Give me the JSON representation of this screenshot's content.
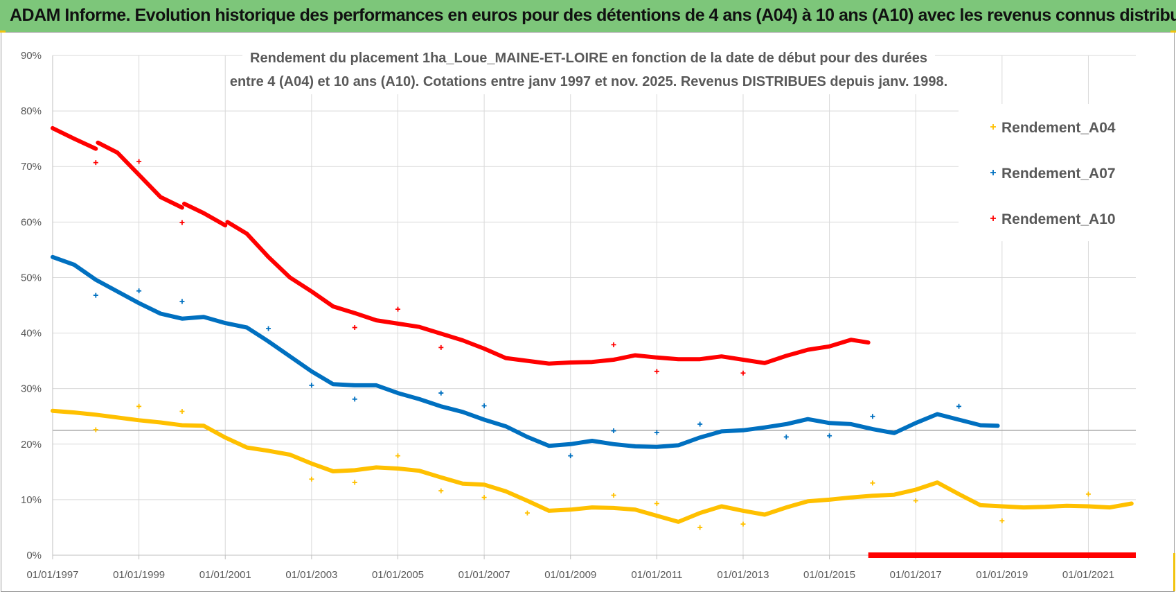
{
  "banner": {
    "title": "ADAM Informe. Evolution historique des performances en euros pour des détentions de 4 ans (A04) à 10 ans (A10) avec les revenus connus distribués"
  },
  "chart_data": {
    "type": "scatter",
    "title_lines": [
      "Rendement du placement 1ha_Loue_MAINE-ET-LOIRE en fonction de la date de début pour des durées",
      "entre 4 (A04) et 10 ans (A10). Cotations entre janv 1997 et nov. 2025. Revenus DISTRIBUES depuis janv. 1998."
    ],
    "xlabel": "",
    "ylabel": "",
    "x_tick_labels": [
      "01/01/1997",
      "01/01/1999",
      "01/01/2001",
      "01/01/2003",
      "01/01/2005",
      "01/01/2007",
      "01/01/2009",
      "01/01/2011",
      "01/01/2013",
      "01/01/2015",
      "01/01/2017",
      "01/01/2019",
      "01/01/2021"
    ],
    "y_tick_labels": [
      "0%",
      "10%",
      "20%",
      "30%",
      "40%",
      "50%",
      "60%",
      "70%",
      "80%",
      "90%"
    ],
    "xlim": [
      1997.0,
      2022.1
    ],
    "ylim": [
      0,
      90
    ],
    "legend_position": "right",
    "series": [
      {
        "name": "Rendement_A04",
        "color": "#ffc000",
        "points": [
          [
            1997.0,
            26.0
          ],
          [
            1997.5,
            25.7
          ],
          [
            1998.0,
            25.3
          ],
          [
            1998.5,
            24.8
          ],
          [
            1999.0,
            24.3
          ],
          [
            1999.5,
            23.9
          ],
          [
            2000.0,
            23.4
          ],
          [
            2000.5,
            23.3
          ],
          [
            2001.0,
            21.2
          ],
          [
            2001.5,
            19.4
          ],
          [
            2002.0,
            18.8
          ],
          [
            2002.5,
            18.1
          ],
          [
            2003.0,
            16.5
          ],
          [
            2003.5,
            15.1
          ],
          [
            2004.0,
            15.3
          ],
          [
            2004.5,
            15.8
          ],
          [
            2005.0,
            15.6
          ],
          [
            2005.5,
            15.2
          ],
          [
            2006.0,
            14.0
          ],
          [
            2006.5,
            12.9
          ],
          [
            2007.0,
            12.7
          ],
          [
            2007.5,
            11.5
          ],
          [
            2008.0,
            9.8
          ],
          [
            2008.5,
            8.0
          ],
          [
            2009.0,
            8.2
          ],
          [
            2009.5,
            8.6
          ],
          [
            2010.0,
            8.5
          ],
          [
            2010.5,
            8.2
          ],
          [
            2011.0,
            7.1
          ],
          [
            2011.5,
            6.0
          ],
          [
            2012.0,
            7.6
          ],
          [
            2012.5,
            8.8
          ],
          [
            2013.0,
            8.0
          ],
          [
            2013.5,
            7.3
          ],
          [
            2014.0,
            8.6
          ],
          [
            2014.5,
            9.7
          ],
          [
            2015.0,
            10.0
          ],
          [
            2015.5,
            10.4
          ],
          [
            2016.0,
            10.7
          ],
          [
            2016.5,
            10.9
          ],
          [
            2017.0,
            11.8
          ],
          [
            2017.5,
            13.1
          ],
          [
            2018.0,
            11.0
          ],
          [
            2018.5,
            9.0
          ],
          [
            2019.0,
            8.8
          ],
          [
            2019.5,
            8.6
          ],
          [
            2020.0,
            8.7
          ],
          [
            2020.5,
            8.9
          ],
          [
            2021.0,
            8.8
          ],
          [
            2021.5,
            8.6
          ],
          [
            2022.0,
            9.3
          ]
        ],
        "outliers": [
          [
            1998.0,
            22.6
          ],
          [
            1999.0,
            26.8
          ],
          [
            2000.0,
            25.9
          ],
          [
            2003.0,
            13.7
          ],
          [
            2004.0,
            13.1
          ],
          [
            2005.0,
            17.9
          ],
          [
            2006.0,
            11.6
          ],
          [
            2007.0,
            10.4
          ],
          [
            2008.0,
            7.6
          ],
          [
            2010.0,
            10.8
          ],
          [
            2011.0,
            9.3
          ],
          [
            2012.0,
            5.0
          ],
          [
            2013.0,
            5.6
          ],
          [
            2016.0,
            13.0
          ],
          [
            2017.0,
            9.8
          ],
          [
            2019.0,
            6.2
          ],
          [
            2021.0,
            11.0
          ]
        ]
      },
      {
        "name": "Rendement_A07",
        "color": "#0070c0",
        "points": [
          [
            1997.0,
            53.7
          ],
          [
            1997.5,
            52.3
          ],
          [
            1998.0,
            49.6
          ],
          [
            1998.5,
            47.5
          ],
          [
            1999.0,
            45.4
          ],
          [
            1999.5,
            43.5
          ],
          [
            2000.0,
            42.6
          ],
          [
            2000.5,
            42.9
          ],
          [
            2001.0,
            41.8
          ],
          [
            2001.5,
            41.0
          ],
          [
            2002.0,
            38.5
          ],
          [
            2002.5,
            35.8
          ],
          [
            2003.0,
            33.1
          ],
          [
            2003.5,
            30.8
          ],
          [
            2004.0,
            30.6
          ],
          [
            2004.5,
            30.6
          ],
          [
            2005.0,
            29.2
          ],
          [
            2005.5,
            28.1
          ],
          [
            2006.0,
            26.8
          ],
          [
            2006.5,
            25.8
          ],
          [
            2007.0,
            24.4
          ],
          [
            2007.5,
            23.2
          ],
          [
            2008.0,
            21.3
          ],
          [
            2008.5,
            19.7
          ],
          [
            2009.0,
            20.0
          ],
          [
            2009.5,
            20.6
          ],
          [
            2010.0,
            20.0
          ],
          [
            2010.5,
            19.6
          ],
          [
            2011.0,
            19.5
          ],
          [
            2011.5,
            19.8
          ],
          [
            2012.0,
            21.2
          ],
          [
            2012.5,
            22.3
          ],
          [
            2013.0,
            22.5
          ],
          [
            2013.5,
            23.0
          ],
          [
            2014.0,
            23.6
          ],
          [
            2014.5,
            24.5
          ],
          [
            2015.0,
            23.8
          ],
          [
            2015.5,
            23.6
          ],
          [
            2016.0,
            22.7
          ],
          [
            2016.5,
            22.0
          ],
          [
            2017.0,
            23.8
          ],
          [
            2017.5,
            25.4
          ],
          [
            2018.0,
            24.4
          ],
          [
            2018.5,
            23.4
          ],
          [
            2018.9,
            23.3
          ]
        ],
        "outliers": [
          [
            1998.0,
            46.8
          ],
          [
            1999.0,
            47.6
          ],
          [
            2000.0,
            45.7
          ],
          [
            2002.0,
            40.8
          ],
          [
            2003.0,
            30.6
          ],
          [
            2004.0,
            28.1
          ],
          [
            2006.0,
            29.2
          ],
          [
            2007.0,
            26.9
          ],
          [
            2009.0,
            17.9
          ],
          [
            2010.0,
            22.4
          ],
          [
            2011.0,
            22.1
          ],
          [
            2012.0,
            23.6
          ],
          [
            2014.0,
            21.3
          ],
          [
            2015.0,
            21.5
          ],
          [
            2016.0,
            25.0
          ],
          [
            2018.0,
            26.8
          ]
        ]
      },
      {
        "name": "Rendement_A10",
        "color": "#ff0000",
        "points": [
          [
            1997.0,
            76.9
          ],
          [
            1997.5,
            75.0
          ],
          [
            1998.0,
            73.2
          ],
          [
            1998.05,
            74.3
          ],
          [
            1998.5,
            72.5
          ],
          [
            1999.0,
            68.5
          ],
          [
            1999.5,
            64.5
          ],
          [
            2000.0,
            62.6
          ],
          [
            2000.05,
            63.3
          ],
          [
            2000.5,
            61.6
          ],
          [
            2001.0,
            59.4
          ],
          [
            2001.05,
            60.0
          ],
          [
            2001.5,
            57.9
          ],
          [
            2002.0,
            53.7
          ],
          [
            2002.5,
            50.0
          ],
          [
            2003.0,
            47.5
          ],
          [
            2003.5,
            44.8
          ],
          [
            2004.0,
            43.6
          ],
          [
            2004.5,
            42.3
          ],
          [
            2005.0,
            41.7
          ],
          [
            2005.5,
            41.1
          ],
          [
            2006.0,
            39.9
          ],
          [
            2006.5,
            38.7
          ],
          [
            2007.0,
            37.2
          ],
          [
            2007.5,
            35.5
          ],
          [
            2008.0,
            35.0
          ],
          [
            2008.5,
            34.5
          ],
          [
            2009.0,
            34.7
          ],
          [
            2009.5,
            34.8
          ],
          [
            2010.0,
            35.2
          ],
          [
            2010.5,
            36.0
          ],
          [
            2011.0,
            35.6
          ],
          [
            2011.5,
            35.3
          ],
          [
            2012.0,
            35.3
          ],
          [
            2012.5,
            35.8
          ],
          [
            2013.0,
            35.2
          ],
          [
            2013.5,
            34.6
          ],
          [
            2014.0,
            35.9
          ],
          [
            2014.5,
            37.0
          ],
          [
            2015.0,
            37.6
          ],
          [
            2015.5,
            38.8
          ],
          [
            2015.9,
            38.3
          ]
        ],
        "outliers": [
          [
            1998.0,
            70.7
          ],
          [
            1999.0,
            70.9
          ],
          [
            2000.0,
            59.9
          ],
          [
            2004.0,
            41.0
          ],
          [
            2005.0,
            44.3
          ],
          [
            2006.0,
            37.4
          ],
          [
            2010.0,
            37.9
          ],
          [
            2011.0,
            33.1
          ],
          [
            2013.0,
            32.8
          ]
        ],
        "zero_band": [
          2015.9,
          2022.1
        ]
      }
    ],
    "reference_line": 22.5
  }
}
